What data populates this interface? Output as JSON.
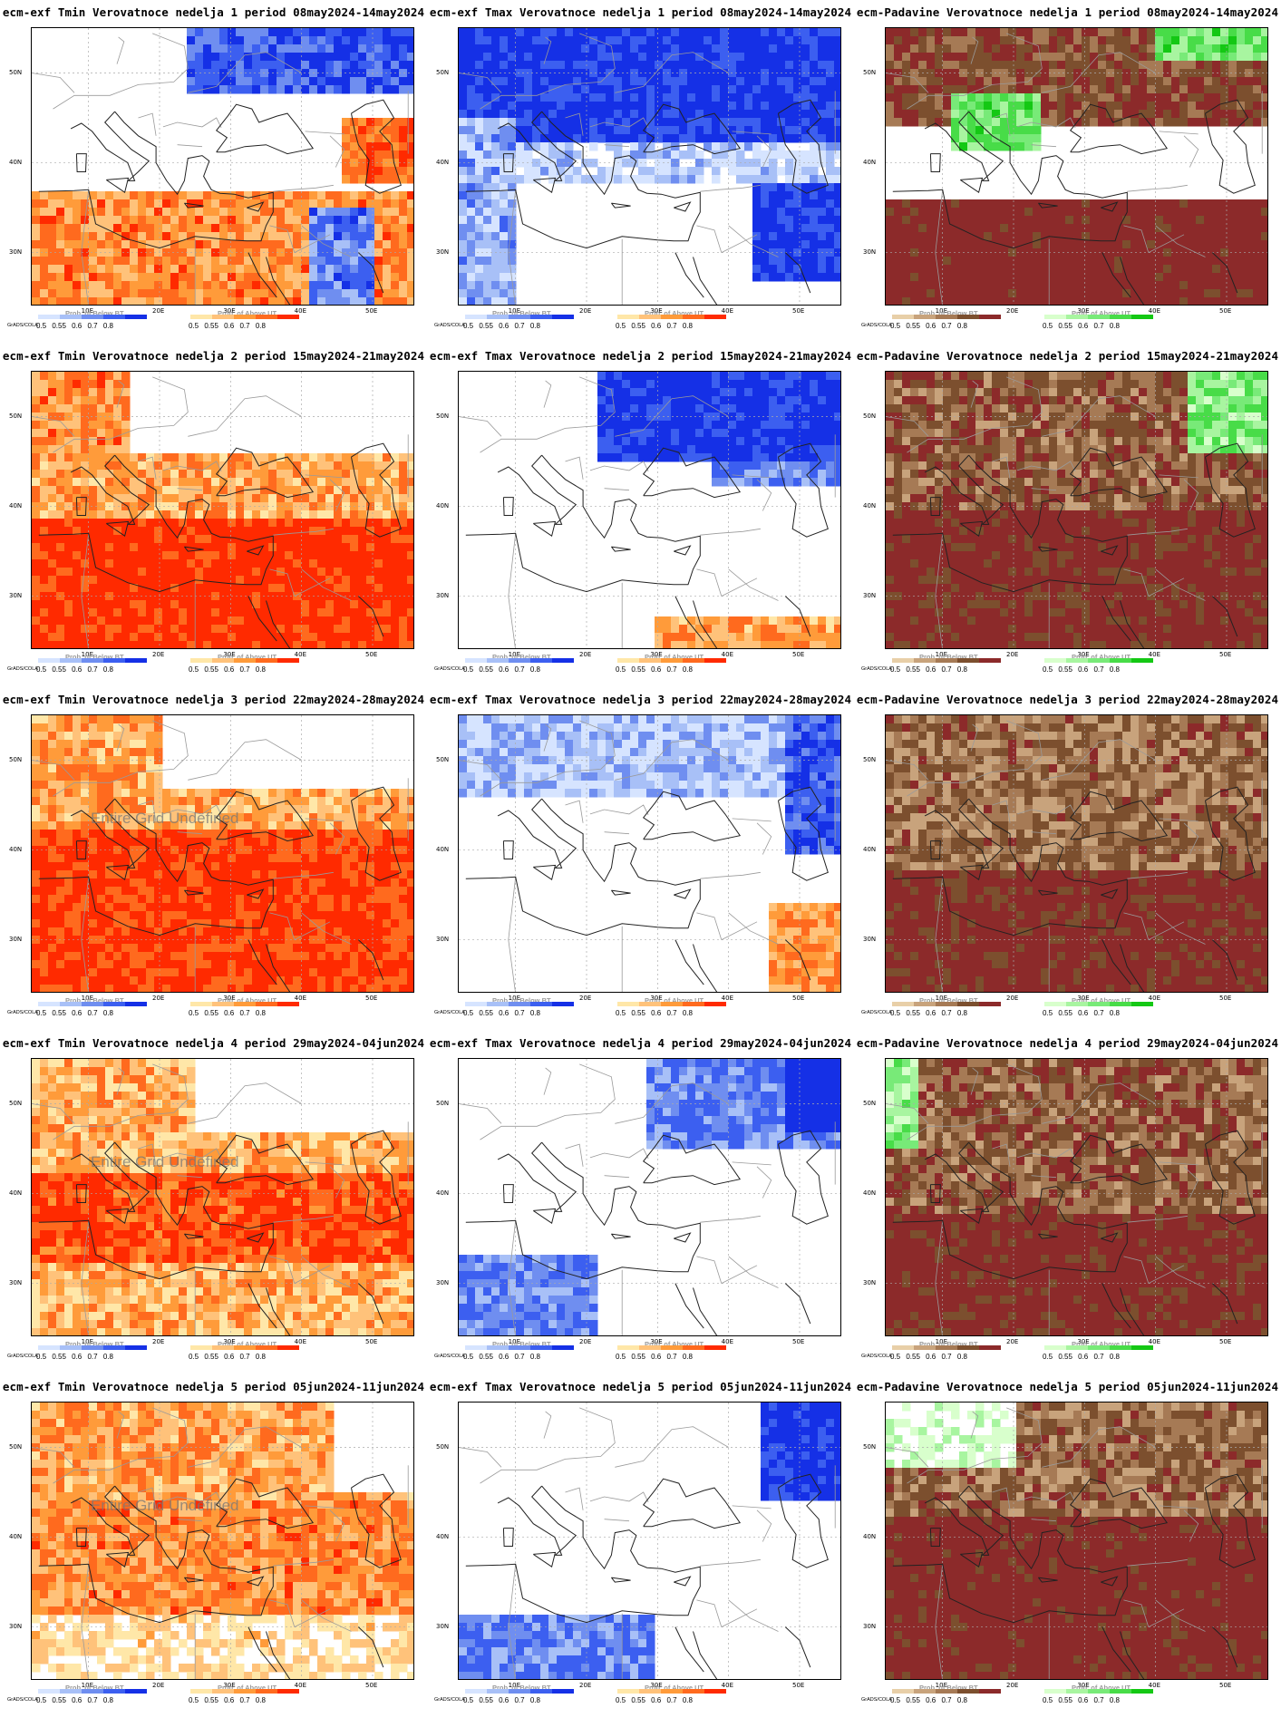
{
  "panels": [
    {
      "title": "ecm-exf Tmin Verovatnoce nedelja 1 period 08may2024-14may2024",
      "var": "tmin",
      "week": 1,
      "overlay": ""
    },
    {
      "title": "ecm-exf Tmax Verovatnoce nedelja 1 period 08may2024-14may2024",
      "var": "tmax",
      "week": 1,
      "overlay": ""
    },
    {
      "title": "ecm-Padavine Verovatnoce nedelja 1 period 08may2024-14may2024",
      "var": "prec",
      "week": 1,
      "overlay": ""
    },
    {
      "title": "ecm-exf Tmin Verovatnoce nedelja 2 period 15may2024-21may2024",
      "var": "tmin",
      "week": 2,
      "overlay": ""
    },
    {
      "title": "ecm-exf Tmax Verovatnoce nedelja 2 period 15may2024-21may2024",
      "var": "tmax",
      "week": 2,
      "overlay": ""
    },
    {
      "title": "ecm-Padavine Verovatnoce nedelja 2 period 15may2024-21may2024",
      "var": "prec",
      "week": 2,
      "overlay": ""
    },
    {
      "title": "ecm-exf Tmin Verovatnoce nedelja 3 period 22may2024-28may2024",
      "var": "tmin",
      "week": 3,
      "overlay": "Entire Grid Undefined"
    },
    {
      "title": "ecm-exf Tmax Verovatnoce nedelja 3 period 22may2024-28may2024",
      "var": "tmax",
      "week": 3,
      "overlay": ""
    },
    {
      "title": "ecm-Padavine Verovatnoce nedelja 3 period 22may2024-28may2024",
      "var": "prec",
      "week": 3,
      "overlay": ""
    },
    {
      "title": "ecm-exf Tmin Verovatnoce nedelja 4 period 29may2024-04jun2024",
      "var": "tmin",
      "week": 4,
      "overlay": "Entire Grid Undefined"
    },
    {
      "title": "ecm-exf Tmax Verovatnoce nedelja 4 period 29may2024-04jun2024",
      "var": "tmax",
      "week": 4,
      "overlay": ""
    },
    {
      "title": "ecm-Padavine Verovatnoce nedelja 4 period 29may2024-04jun2024",
      "var": "prec",
      "week": 4,
      "overlay": ""
    },
    {
      "title": "ecm-exf Tmin Verovatnoce nedelja 5 period 05jun2024-11jun2024",
      "var": "tmin",
      "week": 5,
      "overlay": "Entire Grid Undefined"
    },
    {
      "title": "ecm-exf Tmax Verovatnoce nedelja 5 period 05jun2024-11jun2024",
      "var": "tmax",
      "week": 5,
      "overlay": ""
    },
    {
      "title": "ecm-Padavine Verovatnoce nedelja 5 period 05jun2024-11jun2024",
      "var": "prec",
      "week": 5,
      "overlay": ""
    }
  ],
  "axes": {
    "lat_labels": [
      "50N",
      "40N",
      "30N"
    ],
    "lon_labels": [
      "10E",
      "20E",
      "30E",
      "40E",
      "50E"
    ]
  },
  "colorbars": {
    "below_title": "Prob. of Below BT",
    "above_title": "Prob. of Above UT",
    "values_left": "0.5  0.55  0.6  0.7  0.8",
    "values_right": "0.5  0.55  0.6  0.7  0.8",
    "grads_label": "GrADS/COLA",
    "temp_below_colors": [
      "#d6e4ff",
      "#a8c0f7",
      "#6f8ef0",
      "#3c5ff0",
      "#1530e6"
    ],
    "temp_above_colors": [
      "#ffe7a8",
      "#ffc27a",
      "#ff9b3a",
      "#ff6a1e",
      "#ff2a00"
    ],
    "prec_below_colors": [
      "#e8cfa8",
      "#c8a37c",
      "#a67a55",
      "#7c4f2e",
      "#8c2a2a"
    ],
    "prec_above_colors": [
      "#d8ffcc",
      "#a8f5a0",
      "#78ea78",
      "#48dc48",
      "#14c814"
    ]
  }
}
